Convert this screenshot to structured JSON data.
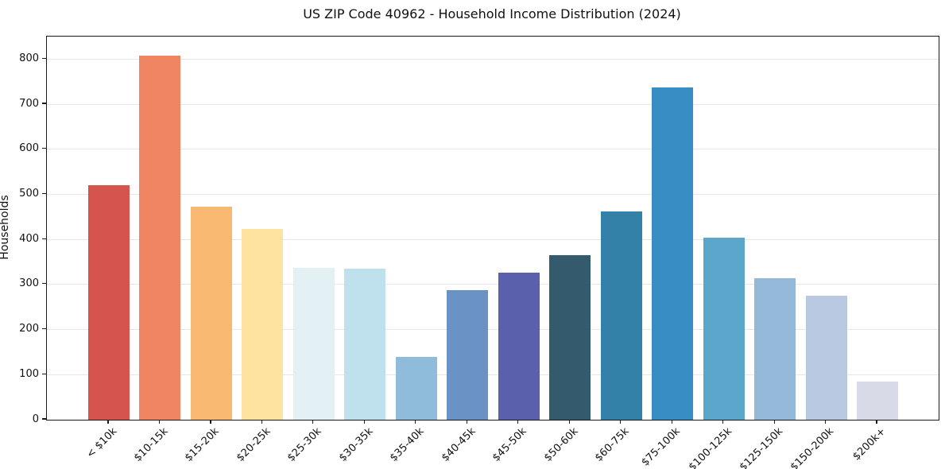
{
  "chart_data": {
    "type": "bar",
    "title": "US ZIP Code 40962 - Household Income Distribution (2024)",
    "xlabel": "",
    "ylabel": "Households",
    "categories": [
      "< $10k",
      "$10-15k",
      "$15-20k",
      "$20-25k",
      "$25-30k",
      "$30-35k",
      "$35-40k",
      "$40-45k",
      "$45-50k",
      "$50-60k",
      "$60-75k",
      "$75-100k",
      "$100-125k",
      "$125-150k",
      "$150-200k",
      "$200k+"
    ],
    "values": [
      520,
      808,
      472,
      423,
      336,
      335,
      139,
      288,
      326,
      365,
      462,
      737,
      404,
      314,
      275,
      85
    ],
    "bar_colors": [
      "#d6544e",
      "#ef8562",
      "#f9b872",
      "#fde2a0",
      "#e3f1f4",
      "#bfe1ee",
      "#8fbcda",
      "#6b92c4",
      "#5b60ad",
      "#345a6e",
      "#3380a8",
      "#398dc5",
      "#5aa7cb",
      "#94b8d7",
      "#bac9e2",
      "#d8dae8"
    ],
    "ylim": [
      0,
      850
    ],
    "yticks": [
      0,
      100,
      200,
      300,
      400,
      500,
      600,
      700,
      800
    ],
    "grid": "horizontal",
    "legend": "none",
    "plot_background": "#ffffff",
    "gridline_color": "#e7e7e7",
    "spine_color": "#1a1a1a"
  }
}
